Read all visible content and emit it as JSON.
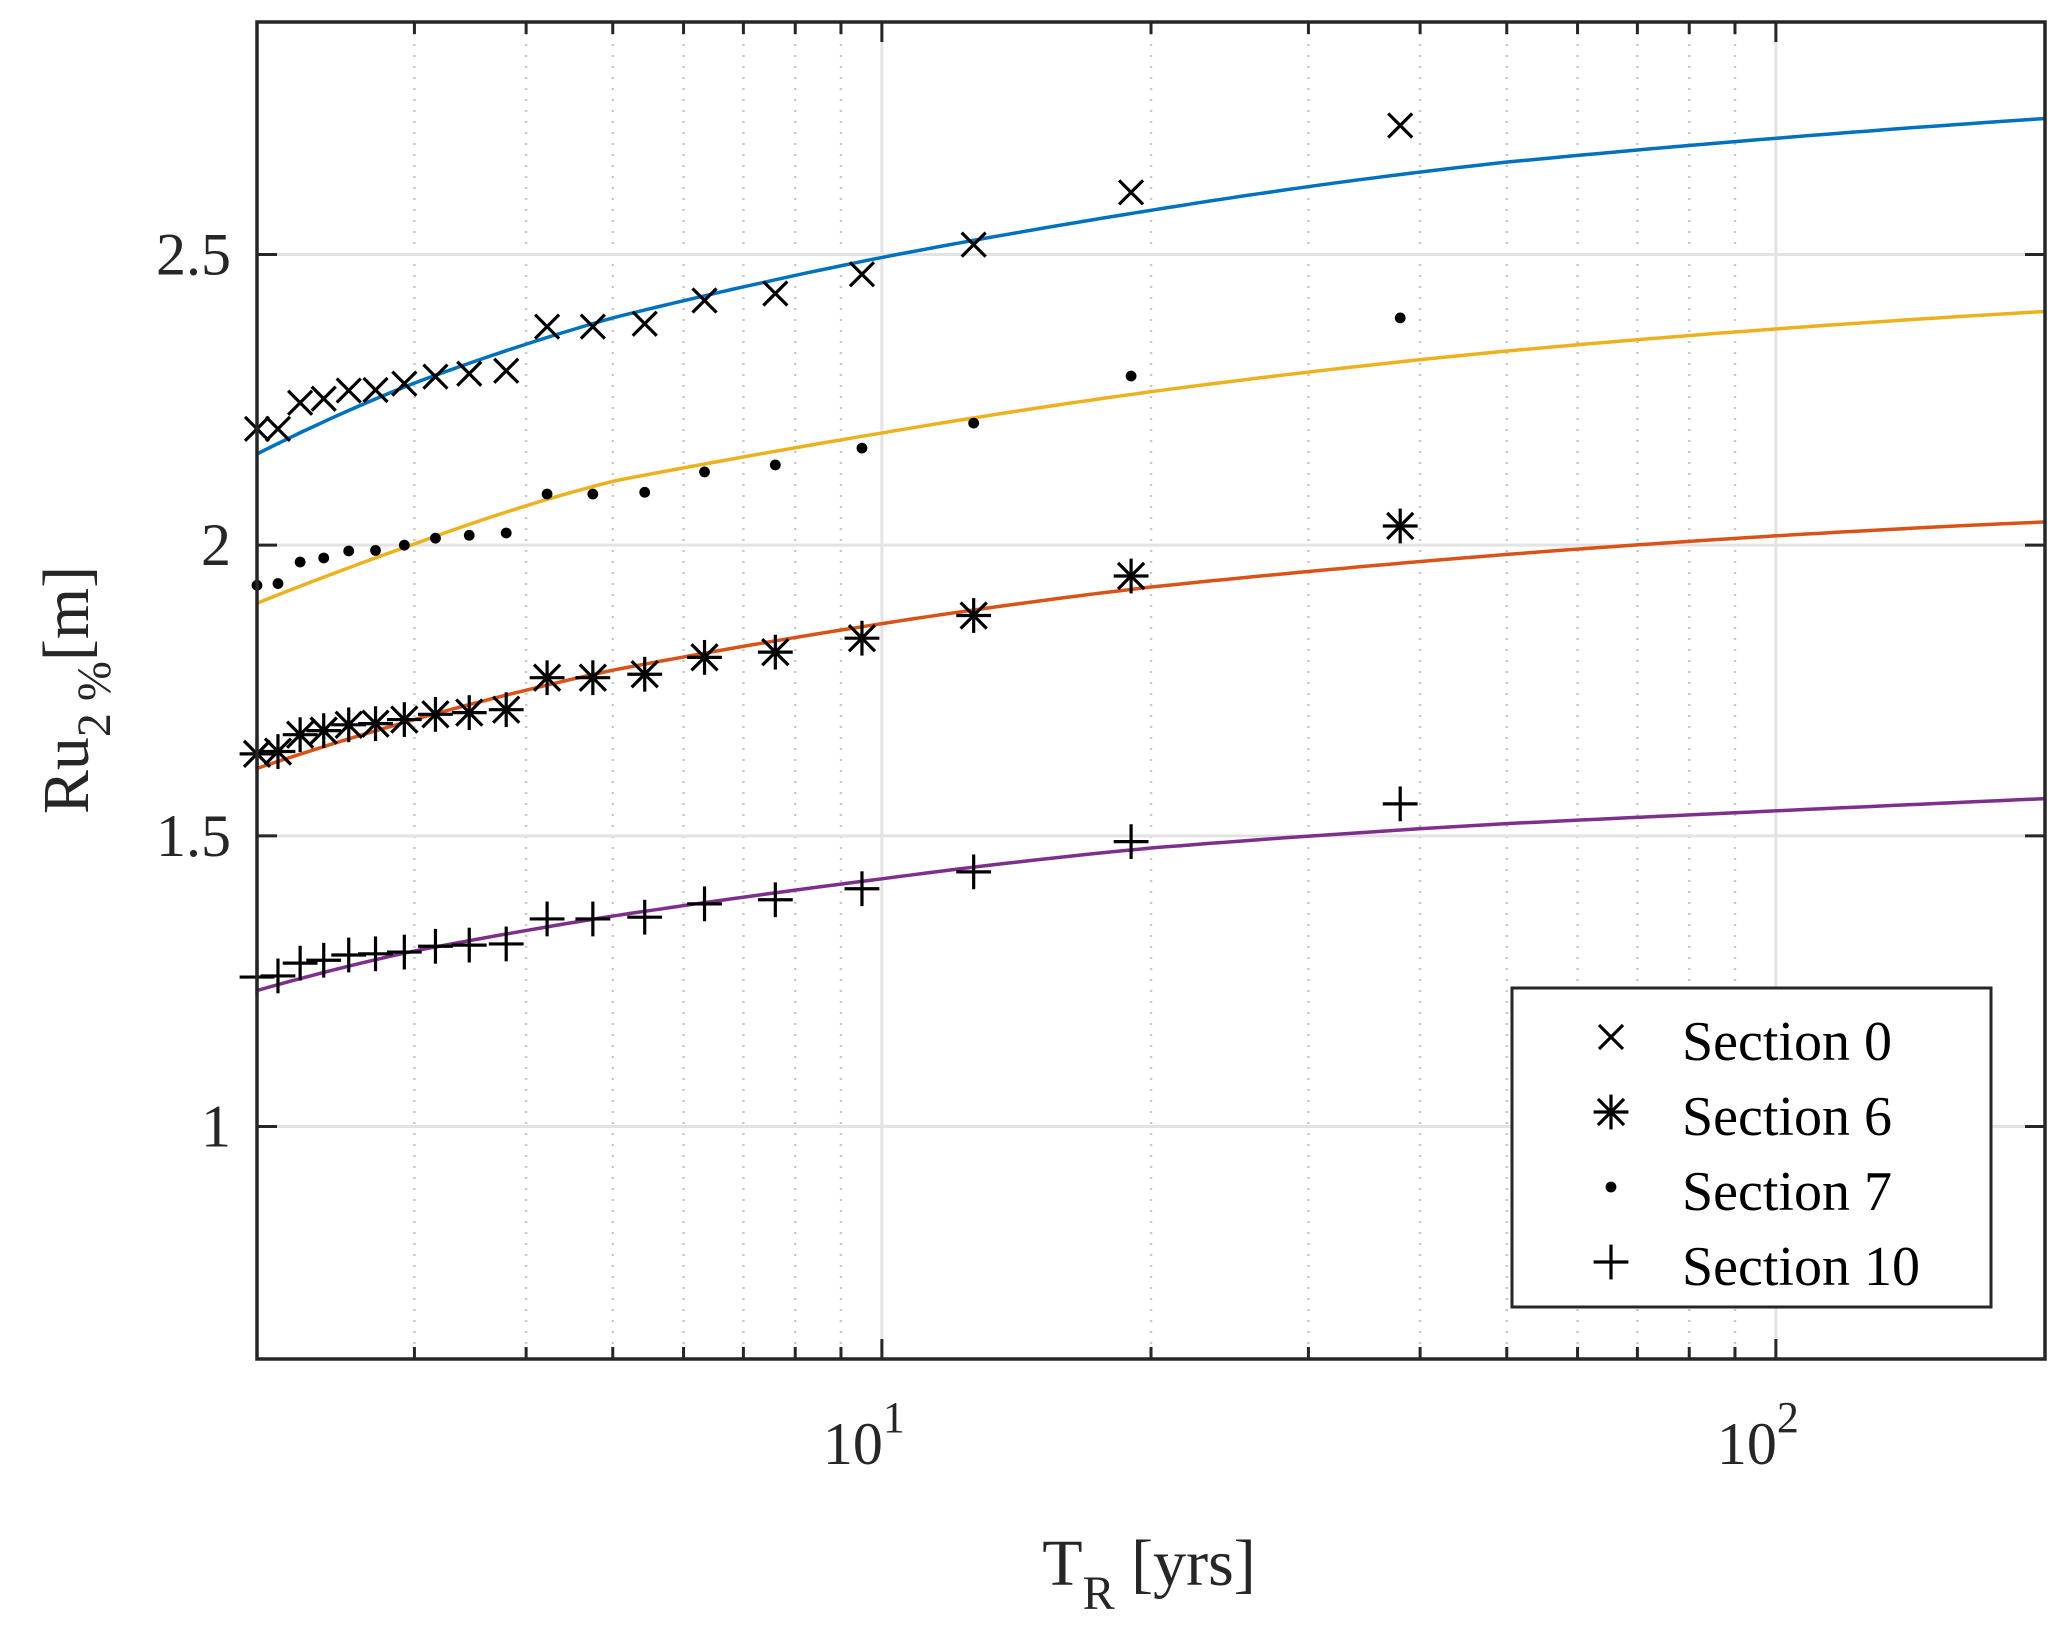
{
  "chart_data": {
    "type": "scatter",
    "title": "",
    "xlabel": {
      "main": "T",
      "sub": "R",
      "rest": " [yrs]"
    },
    "ylabel": {
      "main": "Ru",
      "sub": "2 %",
      "rest": "[m]"
    },
    "xscale": "log",
    "xlim": [
      2,
      200
    ],
    "ylim": [
      0.6,
      2.9
    ],
    "grid": true,
    "minor_grid_x": true,
    "xticks": [
      {
        "value": 10,
        "base": "10",
        "exp": "1"
      },
      {
        "value": 100,
        "base": "10",
        "exp": "2"
      }
    ],
    "yticks": [
      {
        "value": 1,
        "label": "1"
      },
      {
        "value": 1.5,
        "label": "1.5"
      },
      {
        "value": 2,
        "label": "2"
      },
      {
        "value": 2.5,
        "label": "2.5"
      }
    ],
    "legend_position": "bottom-right",
    "x": [
      2.0,
      2.111,
      2.235,
      2.375,
      2.533,
      2.714,
      2.923,
      3.167,
      3.455,
      3.8,
      4.222,
      4.75,
      5.429,
      6.333,
      7.6,
      9.5,
      12.667,
      19.0,
      38.0
    ],
    "series": [
      {
        "name": "Section 0",
        "marker": "x",
        "color": "#000000",
        "values": [
          2.2,
          2.2,
          2.245,
          2.252,
          2.266,
          2.267,
          2.278,
          2.29,
          2.295,
          2.3,
          2.376,
          2.376,
          2.381,
          2.421,
          2.433,
          2.466,
          2.517,
          2.607,
          2.722
        ],
        "fit": {
          "color": "#0072BD",
          "T": [
            2,
            3,
            5,
            10,
            20,
            50,
            100,
            200
          ],
          "values": [
            2.157,
            2.279,
            2.391,
            2.495,
            2.576,
            2.659,
            2.7,
            2.734
          ]
        }
      },
      {
        "name": "Section 6",
        "marker": "asterisk",
        "color": "#000000",
        "values": [
          1.641,
          1.645,
          1.674,
          1.681,
          1.691,
          1.693,
          1.7,
          1.709,
          1.712,
          1.717,
          1.772,
          1.772,
          1.778,
          1.807,
          1.816,
          1.84,
          1.879,
          1.947,
          2.033
        ],
        "fit": {
          "color": "#D95319",
          "T": [
            2,
            3,
            5,
            10,
            20,
            50,
            100,
            200
          ],
          "values": [
            1.616,
            1.7,
            1.785,
            1.865,
            1.928,
            1.984,
            2.016,
            2.04
          ]
        }
      },
      {
        "name": "Section 7",
        "marker": "dot",
        "color": "#000000",
        "values": [
          1.931,
          1.934,
          1.971,
          1.978,
          1.99,
          1.991,
          2.0,
          2.012,
          2.017,
          2.021,
          2.088,
          2.088,
          2.091,
          2.126,
          2.138,
          2.167,
          2.21,
          2.291,
          2.391
        ],
        "fit": {
          "color": "#EDB120",
          "T": [
            2,
            3,
            5,
            10,
            20,
            50,
            100,
            200
          ],
          "values": [
            1.9,
            2.002,
            2.11,
            2.193,
            2.264,
            2.334,
            2.372,
            2.402
          ]
        }
      },
      {
        "name": "Section 10",
        "marker": "plus",
        "color": "#000000",
        "values": [
          1.257,
          1.259,
          1.281,
          1.286,
          1.295,
          1.297,
          1.3,
          1.31,
          1.312,
          1.314,
          1.357,
          1.357,
          1.36,
          1.383,
          1.39,
          1.409,
          1.438,
          1.49,
          1.555
        ],
        "fit": {
          "color": "#7E2F8E",
          "T": [
            2,
            3,
            5,
            10,
            20,
            50,
            100,
            200
          ],
          "values": [
            1.234,
            1.302,
            1.362,
            1.426,
            1.479,
            1.521,
            1.543,
            1.564
          ]
        }
      }
    ],
    "legend": [
      {
        "label": "Section 0",
        "marker": "x"
      },
      {
        "label": "Section 6",
        "marker": "asterisk"
      },
      {
        "label": "Section 7",
        "marker": "dot"
      },
      {
        "label": "Section 10",
        "marker": "plus"
      }
    ]
  }
}
